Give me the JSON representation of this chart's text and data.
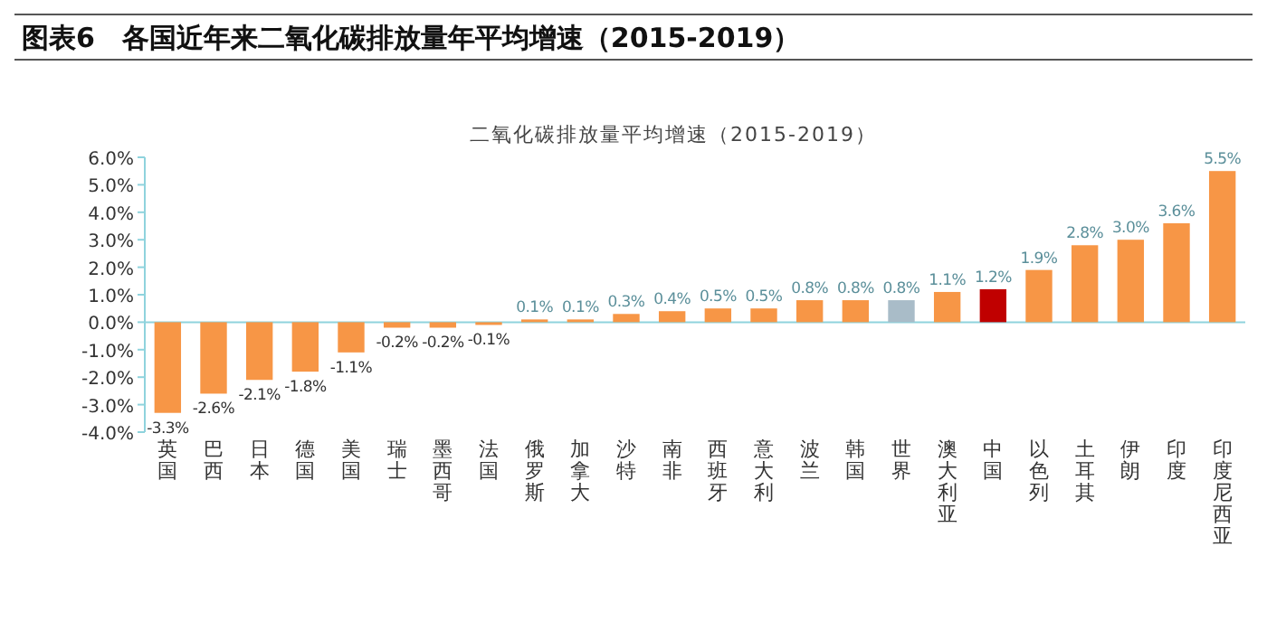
{
  "chart_data": {
    "type": "bar",
    "title": "图表6　各国近年来二氧化碳排放量年平均增速（2015-2019）",
    "subtitle": "二氧化碳排放量平均增速（2015-2019）",
    "categories": [
      "英国",
      "巴西",
      "日本",
      "德国",
      "美国",
      "瑞士",
      "墨西哥",
      "法国",
      "俄罗斯",
      "加拿大",
      "沙特",
      "南非",
      "西班牙",
      "意大利",
      "波兰",
      "韩国",
      "世界",
      "澳大利亚",
      "中国",
      "以色列",
      "土耳其",
      "伊朗",
      "印度",
      "印度尼西亚"
    ],
    "values": [
      -3.3,
      -2.6,
      -2.1,
      -1.8,
      -1.1,
      -0.2,
      -0.2,
      -0.1,
      0.1,
      0.1,
      0.3,
      0.4,
      0.5,
      0.5,
      0.8,
      0.8,
      0.8,
      1.1,
      1.2,
      1.9,
      2.8,
      3.0,
      3.6,
      5.5
    ],
    "value_labels": [
      "-3.3%",
      "-2.6%",
      "-2.1%",
      "-1.8%",
      "-1.1%",
      "-0.2%",
      "-0.2%",
      "-0.1%",
      "0.1%",
      "0.1%",
      "0.3%",
      "0.4%",
      "0.5%",
      "0.5%",
      "0.8%",
      "0.8%",
      "0.8%",
      "1.1%",
      "1.2%",
      "1.9%",
      "2.8%",
      "3.0%",
      "3.6%",
      "5.5%"
    ],
    "colors": [
      "#f79646",
      "#f79646",
      "#f79646",
      "#f79646",
      "#f79646",
      "#f79646",
      "#f79646",
      "#f79646",
      "#f79646",
      "#f79646",
      "#f79646",
      "#f79646",
      "#f79646",
      "#f79646",
      "#f79646",
      "#f79646",
      "#a9bcc8",
      "#f79646",
      "#c00000",
      "#f79646",
      "#f79646",
      "#f79646",
      "#f79646",
      "#f79646"
    ],
    "ylim": [
      -4.0,
      6.0
    ],
    "yticks": [
      {
        "value": -4,
        "label": "-4.0%"
      },
      {
        "value": -3,
        "label": "-3.0%"
      },
      {
        "value": -2,
        "label": "-2.0%"
      },
      {
        "value": -1,
        "label": "-1.0%"
      },
      {
        "value": 0,
        "label": "0.0%"
      },
      {
        "value": 1,
        "label": "1.0%"
      },
      {
        "value": 2,
        "label": "2.0%"
      },
      {
        "value": 3,
        "label": "3.0%"
      },
      {
        "value": 4,
        "label": "4.0%"
      },
      {
        "value": 5,
        "label": "5.0%"
      },
      {
        "value": 6,
        "label": "6.0%"
      }
    ],
    "ref_lines": [
      {
        "axis": "y",
        "value": 0,
        "color": "#8fd3dd"
      }
    ],
    "legend": false,
    "grid": false
  }
}
